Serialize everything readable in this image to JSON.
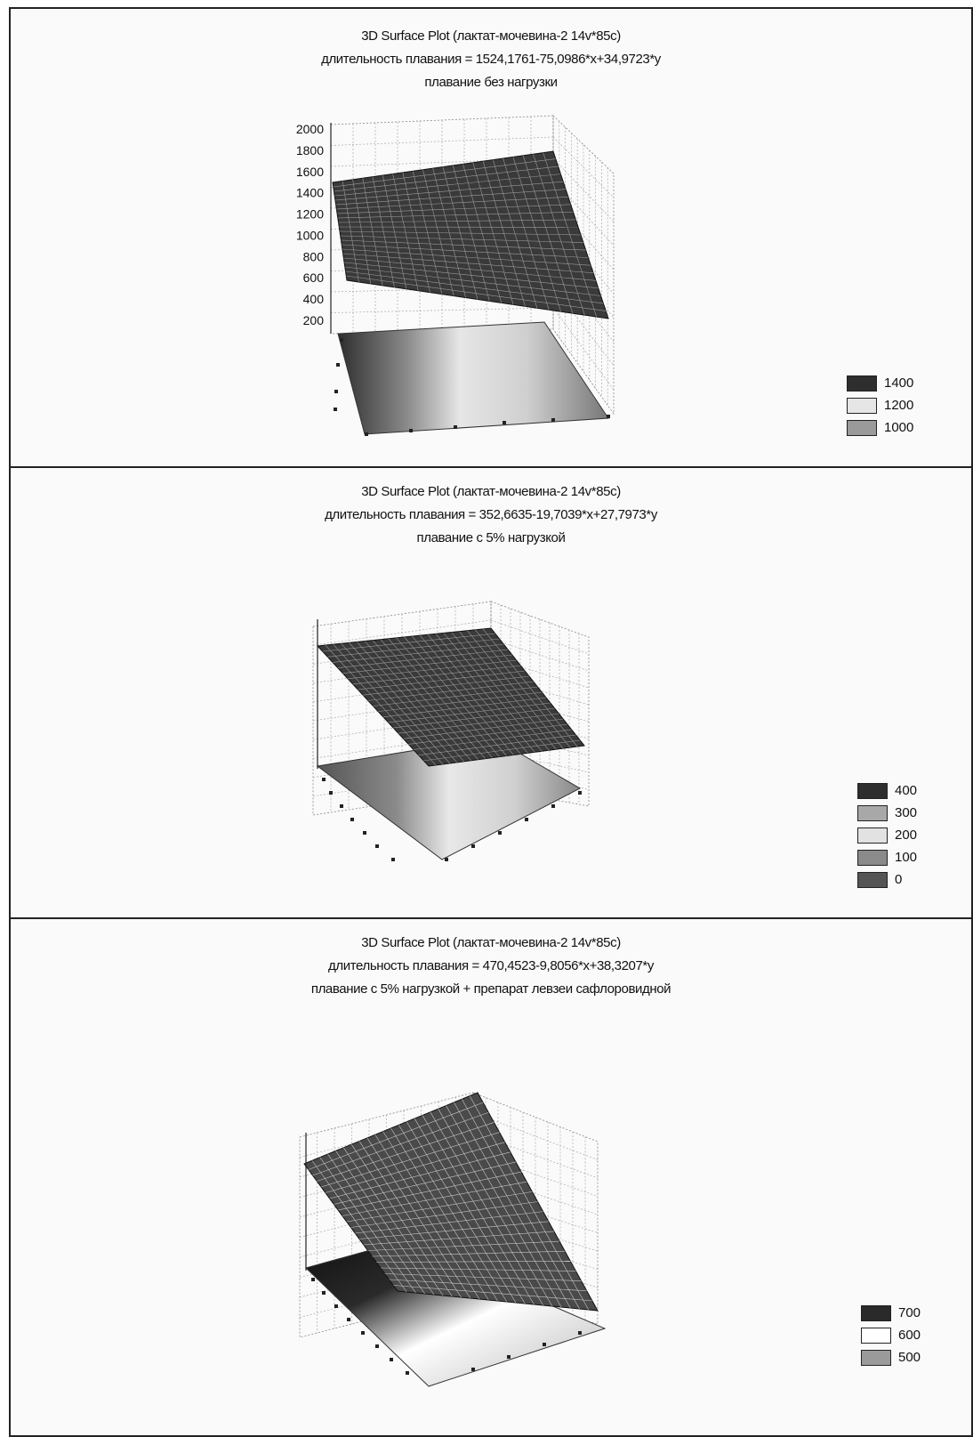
{
  "charts": [
    {
      "title": "3D Surface Plot (лактат-мочевина-2 14v*85c)",
      "formula": "длительность плавания = 1524,1761-75,0986*x+34,9723*y",
      "subtitle": "плавание без нагрузки",
      "legend": [
        {
          "label": "1400",
          "color": "#2e2e2e"
        },
        {
          "label": "1200",
          "color": "#e6e6e6"
        },
        {
          "label": "1000",
          "color": "#9a9a9a"
        }
      ]
    },
    {
      "title": "3D Surface Plot (лактат-мочевина-2 14v*85c)",
      "formula": "длительность плавания = 352,6635-19,7039*x+27,7973*y",
      "subtitle": "плавание с 5% нагрузкой",
      "legend": [
        {
          "label": "400",
          "color": "#2e2e2e"
        },
        {
          "label": "300",
          "color": "#a8a8a8"
        },
        {
          "label": "200",
          "color": "#e2e2e2"
        },
        {
          "label": "100",
          "color": "#8a8a8a"
        },
        {
          "label": "0",
          "color": "#555555"
        }
      ]
    },
    {
      "title": "3D Surface Plot (лактат-мочевина-2 14v*85c)",
      "formula": "длительность плавания = 470,4523-9,8056*x+38,3207*y",
      "subtitle": "плавание с 5% нагрузкой + препарат левзеи сафлоровидной",
      "legend": [
        {
          "label": "700",
          "color": "#2a2a2a"
        },
        {
          "label": "600",
          "color": "#ffffff"
        },
        {
          "label": "500",
          "color": "#9a9a9a"
        }
      ]
    }
  ],
  "chart_data": [
    {
      "type": "surface",
      "title": "3D Surface Plot (лактат-мочевина-2 14v*85c)",
      "formula": "1524,1761-75,0986*x+34,9723*y",
      "intercept": 1524.1761,
      "coef_x": -75.0986,
      "coef_y": 34.9723,
      "z_ticks": [
        "200",
        "400",
        "600",
        "800",
        "1000",
        "1200",
        "1400",
        "1600",
        "1800",
        "2000"
      ],
      "zlim": [
        200,
        2000
      ],
      "grid": true
    },
    {
      "type": "surface",
      "title": "3D Surface Plot (лактат-мочевина-2 14v*85c)",
      "formula": "352,6635-19,7039*x+27,7973*y",
      "intercept": 352.6635,
      "coef_x": -19.7039,
      "coef_y": 27.7973,
      "grid": true
    },
    {
      "type": "surface",
      "title": "3D Surface Plot (лактат-мочевина-2 14v*85c)",
      "formula": "470,4523-9,8056*x+38,3207*y",
      "intercept": 470.4523,
      "coef_x": -9.8056,
      "coef_y": 38.3207,
      "grid": true
    }
  ]
}
